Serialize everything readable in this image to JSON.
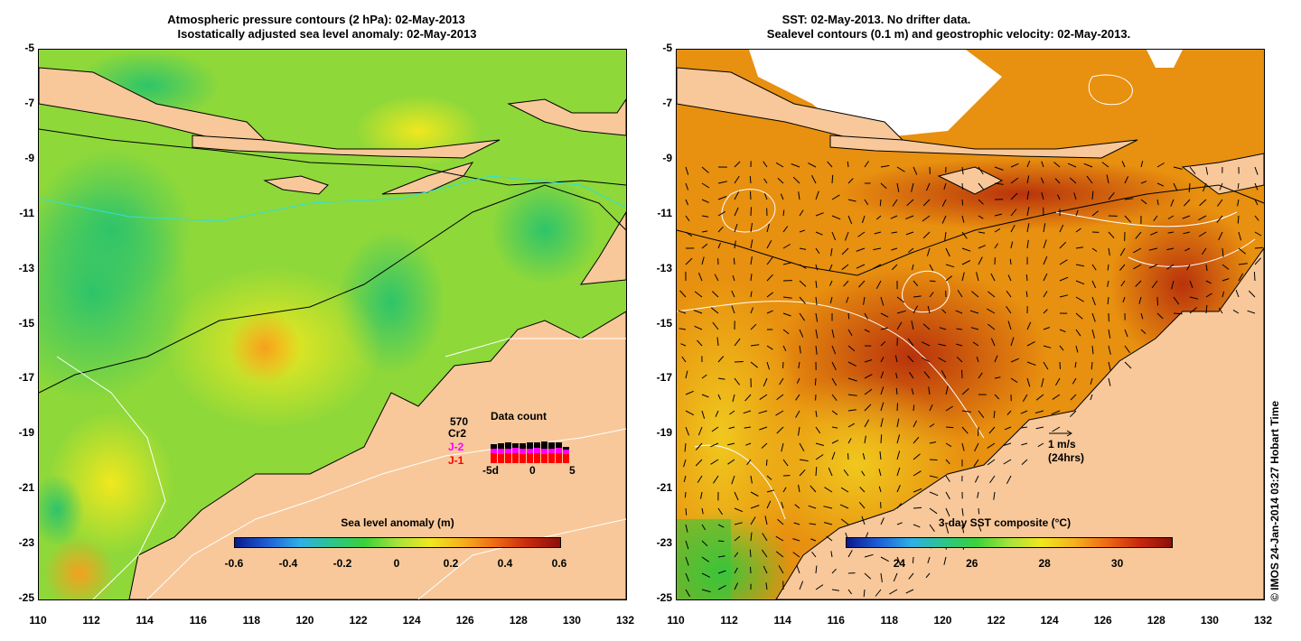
{
  "left_panel": {
    "title_line1": "Atmospheric pressure contours (2 hPa): 02-May-2013",
    "title_line2": "Isostatically adjusted sea level anomaly: 02-May-2013",
    "colorbar": {
      "title": "Sea level anomaly (m)",
      "ticks": [
        "-0.6",
        "-0.4",
        "-0.2",
        "0",
        "0.2",
        "0.4",
        "0.6"
      ],
      "colors": [
        "#0a1a8c",
        "#1f5fd6",
        "#2eb0e6",
        "#2ec48a",
        "#3ad23a",
        "#a8e23a",
        "#f0e81e",
        "#f5b01e",
        "#ee6a14",
        "#c8280f",
        "#8c0f0a"
      ]
    },
    "data_count": {
      "title": "Data count",
      "total": "570",
      "missions": [
        {
          "label": "Cr2",
          "color": "#000000"
        },
        {
          "label": "J-2",
          "color": "#ff00ff"
        },
        {
          "label": "J-1",
          "color": "#ff0000"
        }
      ],
      "axis_ticks": [
        "-5d",
        "0",
        "5"
      ],
      "bars_j1": [
        0.55,
        0.5,
        0.55,
        0.55,
        0.5,
        0.55,
        0.55,
        0.5,
        0.55,
        0.55,
        0.5
      ],
      "bars_j2": [
        0.25,
        0.3,
        0.25,
        0.3,
        0.3,
        0.25,
        0.3,
        0.3,
        0.25,
        0.3,
        0.25
      ],
      "bars_cr2": [
        0.25,
        0.3,
        0.35,
        0.25,
        0.3,
        0.35,
        0.3,
        0.4,
        0.35,
        0.3,
        0.15
      ]
    }
  },
  "right_panel": {
    "title_line1": "SST: 02-May-2013. No drifter data.",
    "title_line2": "Sealevel contours (0.1 m) and geostrophic velocity: 02-May-2013.",
    "colorbar": {
      "title": "3-day SST composite (°C)",
      "ticks": [
        "24",
        "26",
        "28",
        "30"
      ],
      "colors": [
        "#0a1a8c",
        "#1f5fd6",
        "#2eb0e6",
        "#2ec48a",
        "#3ad23a",
        "#a8e23a",
        "#f0e81e",
        "#f5b01e",
        "#ee6a14",
        "#c8280f",
        "#8c0f0a"
      ]
    },
    "velocity_key": {
      "label1": "1 m/s",
      "label2": "(24hrs)"
    }
  },
  "axes": {
    "lat_labels": [
      "-5",
      "-7",
      "-9",
      "-11",
      "-13",
      "-15",
      "-17",
      "-19",
      "-21",
      "-23",
      "-25"
    ],
    "lon_labels": [
      "110",
      "112",
      "114",
      "116",
      "118",
      "120",
      "122",
      "124",
      "126",
      "128",
      "130",
      "132"
    ]
  },
  "credit": "© IMOS 24-Jan-2014 03:27 Hobart Time",
  "colors": {
    "land": "#f8c89a",
    "sea_green": "#7cd63a",
    "sst_orange": "#e88a12",
    "sst_red": "#b8320c"
  }
}
